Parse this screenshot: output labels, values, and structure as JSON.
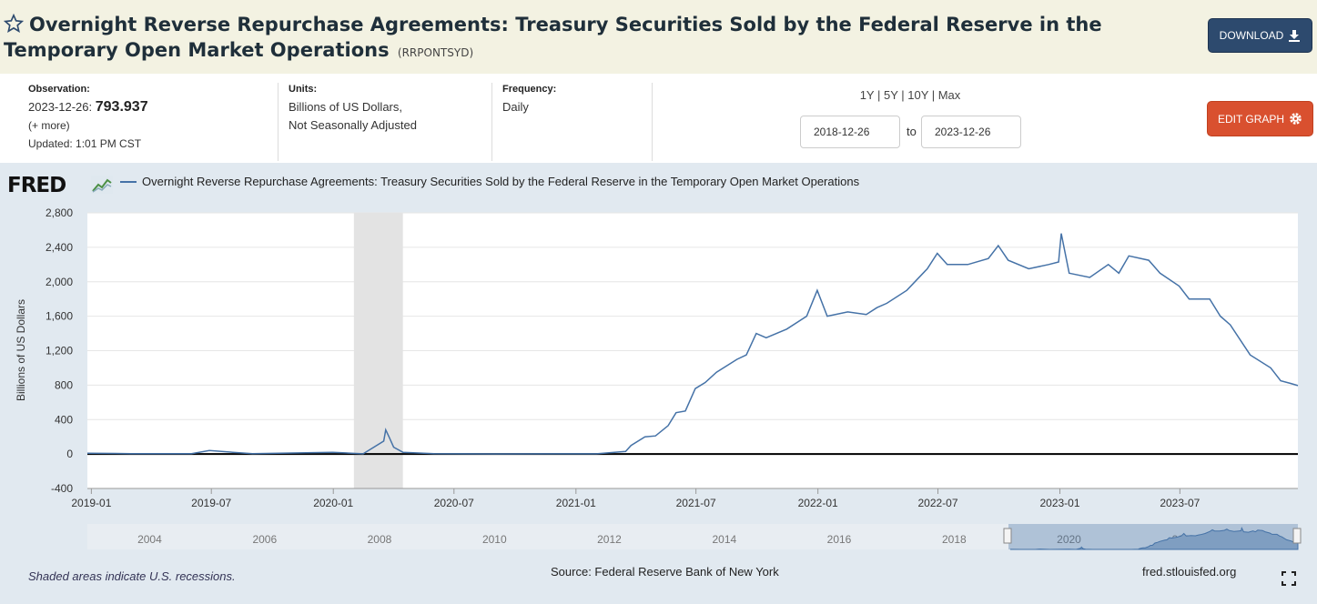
{
  "header": {
    "title": "Overnight Reverse Repurchase Agreements: Treasury Securities Sold by the Federal Reserve in the Temporary Open Market Operations",
    "series_id": "(RRPONTSYD)",
    "download_label": "DOWNLOAD"
  },
  "meta": {
    "observation_label": "Observation:",
    "observation_date": "2023-12-26:",
    "observation_value": "793.937",
    "more_label": "(+ more)",
    "updated": "Updated: 1:01 PM CST",
    "units_label": "Units:",
    "units_line1": "Billions of US Dollars,",
    "units_line2": "Not Seasonally Adjusted",
    "frequency_label": "Frequency:",
    "frequency_value": "Daily",
    "range_links": "1Y | 5Y | 10Y | Max",
    "date_from": "2018-12-26",
    "date_to": "2023-12-26",
    "to_label": "to",
    "edit_label": "EDIT GRAPH"
  },
  "chart_footer": {
    "logo": "FRED",
    "recession_note": "Shaded areas indicate U.S. recessions.",
    "source": "Source: Federal Reserve Bank of New York",
    "site": "fred.stlouisfed.org"
  },
  "colors": {
    "series": "#4572a7",
    "header_bg": "#f3f2e2",
    "chart_bg": "#e1e9f0",
    "download_btn": "#2d4a6e",
    "edit_btn": "#d9502f",
    "recession": "#e3e3e3"
  },
  "chart_data": {
    "type": "line",
    "title": "",
    "xlabel": "",
    "ylabel": "Billions of US Dollars",
    "ylim": [
      -400,
      2800
    ],
    "yticks": [
      -400,
      0,
      400,
      800,
      1200,
      1600,
      2000,
      2400,
      2800
    ],
    "ytick_labels": [
      "-400",
      "0",
      "400",
      "800",
      "1,200",
      "1,600",
      "2,000",
      "2,400",
      "2,800"
    ],
    "xlim": [
      "2018-12-26",
      "2023-12-26"
    ],
    "xticks": [
      "2019-01",
      "2019-07",
      "2020-01",
      "2020-07",
      "2021-01",
      "2021-07",
      "2022-01",
      "2022-07",
      "2023-01",
      "2023-07"
    ],
    "recessions": [
      [
        "2020-02",
        "2020-04"
      ]
    ],
    "grid": true,
    "legend": "top-left",
    "series": [
      {
        "name": "Overnight Reverse Repurchase Agreements: Treasury Securities Sold by the Federal Reserve in the Temporary Open Market Operations",
        "x": [
          "2018-12-26",
          "2019-03-01",
          "2019-06-01",
          "2019-06-28",
          "2019-09-01",
          "2019-12-31",
          "2020-02-15",
          "2020-03-17",
          "2020-03-20",
          "2020-03-25",
          "2020-04-01",
          "2020-04-15",
          "2020-06-01",
          "2020-09-01",
          "2020-12-01",
          "2021-02-01",
          "2021-03-17",
          "2021-03-25",
          "2021-04-15",
          "2021-05-01",
          "2021-05-20",
          "2021-06-01",
          "2021-06-15",
          "2021-06-30",
          "2021-07-15",
          "2021-08-01",
          "2021-09-01",
          "2021-09-15",
          "2021-09-30",
          "2021-10-15",
          "2021-11-15",
          "2021-12-15",
          "2021-12-31",
          "2022-01-15",
          "2022-02-15",
          "2022-03-15",
          "2022-03-31",
          "2022-04-15",
          "2022-05-15",
          "2022-06-15",
          "2022-06-30",
          "2022-07-15",
          "2022-08-15",
          "2022-09-15",
          "2022-09-30",
          "2022-10-15",
          "2022-11-15",
          "2022-12-15",
          "2022-12-30",
          "2023-01-03",
          "2023-01-15",
          "2023-02-15",
          "2023-03-15",
          "2023-03-31",
          "2023-04-15",
          "2023-05-15",
          "2023-06-01",
          "2023-06-30",
          "2023-07-15",
          "2023-08-15",
          "2023-08-31",
          "2023-09-15",
          "2023-10-15",
          "2023-11-15",
          "2023-11-30",
          "2023-12-15",
          "2023-12-26"
        ],
        "values": [
          10,
          5,
          3,
          40,
          3,
          20,
          2,
          150,
          280,
          200,
          80,
          20,
          3,
          1,
          2,
          2,
          30,
          100,
          200,
          210,
          330,
          480,
          500,
          760,
          830,
          950,
          1100,
          1150,
          1400,
          1350,
          1450,
          1600,
          1900,
          1600,
          1650,
          1620,
          1700,
          1750,
          1900,
          2150,
          2330,
          2200,
          2200,
          2270,
          2420,
          2250,
          2150,
          2200,
          2230,
          2560,
          2100,
          2050,
          2200,
          2100,
          2300,
          2250,
          2100,
          1950,
          1800,
          1800,
          1600,
          1500,
          1150,
          1000,
          850,
          820,
          794
        ]
      }
    ]
  }
}
